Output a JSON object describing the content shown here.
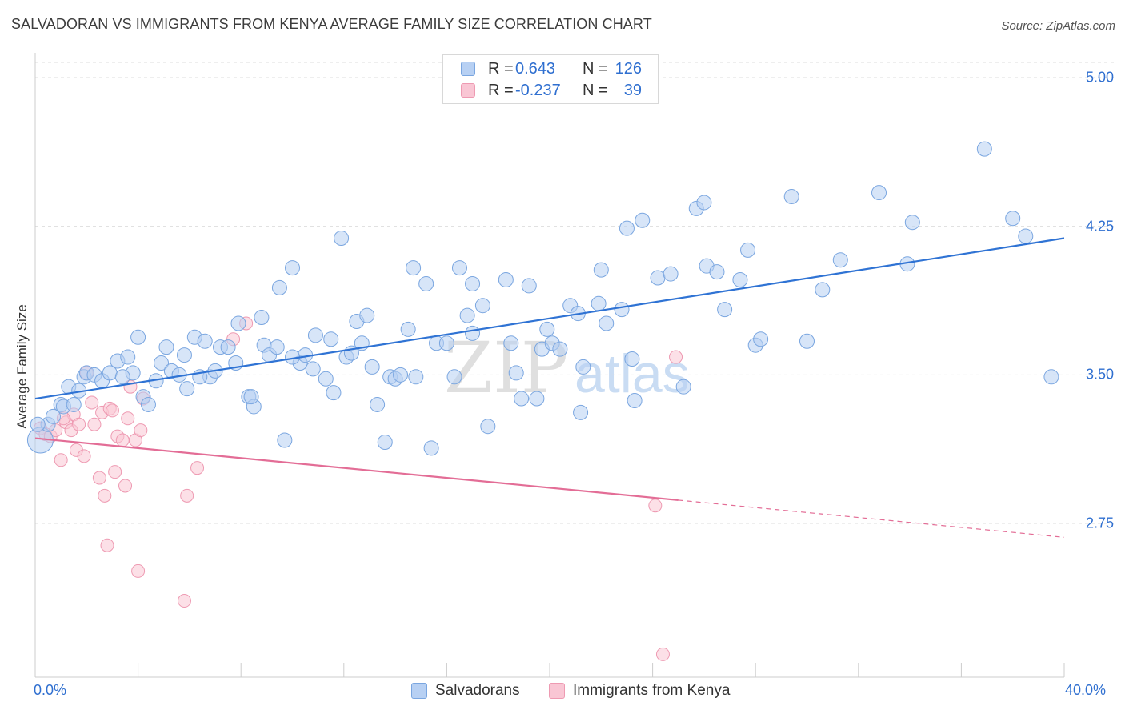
{
  "title": "SALVADORAN VS IMMIGRANTS FROM KENYA AVERAGE FAMILY SIZE CORRELATION CHART",
  "source": "Source: ZipAtlas.com",
  "watermark": "ZIPatlas",
  "legend_top": {
    "rows": [
      {
        "r_label": "R =",
        "r_value": "0.643",
        "n_label": "N =",
        "n_value": "126",
        "color": "#7aa6e0"
      },
      {
        "r_label": "R =",
        "r_value": "-0.237",
        "n_label": "N =",
        "n_value": "39",
        "color": "#ee9ab2"
      }
    ]
  },
  "colors": {
    "blue_fill": "#b7d0f3",
    "blue_stroke": "#7aa6e0",
    "blue_line": "#2f73d4",
    "pink_fill": "#f9c6d4",
    "pink_stroke": "#ee9ab2",
    "pink_line": "#e36d96",
    "tick_text": "#2f6fd0",
    "grid": "#dddddd"
  },
  "chart_data": {
    "type": "scatter",
    "title": "SALVADORAN VS IMMIGRANTS FROM KENYA AVERAGE FAMILY SIZE CORRELATION CHART",
    "xlabel": "",
    "ylabel": "Average Family Size",
    "xlim": [
      0,
      40
    ],
    "ylim": [
      2.15,
      5.1
    ],
    "x_tick_labels": [
      "0.0%",
      "40.0%"
    ],
    "y_ticks": [
      2.75,
      3.5,
      4.25,
      5.0
    ],
    "y_tick_labels": [
      "2.75",
      "3.50",
      "4.25",
      "5.00"
    ],
    "grid": true,
    "legend_position": "bottom",
    "series": [
      {
        "name": "Salvadorans",
        "color": "#7aa6e0",
        "trend": {
          "x": [
            0,
            40
          ],
          "y": [
            3.38,
            4.19
          ],
          "dashed_from": null
        },
        "points": [
          [
            0.2,
            3.17
          ],
          [
            0.5,
            3.25
          ],
          [
            0.7,
            3.29
          ],
          [
            1.0,
            3.35
          ],
          [
            1.1,
            3.34
          ],
          [
            1.3,
            3.44
          ],
          [
            1.5,
            3.35
          ],
          [
            1.9,
            3.49
          ],
          [
            2.0,
            3.51
          ],
          [
            2.3,
            3.5
          ],
          [
            2.6,
            3.47
          ],
          [
            2.9,
            3.51
          ],
          [
            3.2,
            3.57
          ],
          [
            3.6,
            3.59
          ],
          [
            3.8,
            3.51
          ],
          [
            4.0,
            3.69
          ],
          [
            4.2,
            3.39
          ],
          [
            4.4,
            3.35
          ],
          [
            4.7,
            3.47
          ],
          [
            4.9,
            3.56
          ],
          [
            5.1,
            3.64
          ],
          [
            5.3,
            3.52
          ],
          [
            5.6,
            3.5
          ],
          [
            5.8,
            3.6
          ],
          [
            5.9,
            3.43
          ],
          [
            6.2,
            3.69
          ],
          [
            6.6,
            3.67
          ],
          [
            6.8,
            3.49
          ],
          [
            7.0,
            3.52
          ],
          [
            7.2,
            3.64
          ],
          [
            7.5,
            3.64
          ],
          [
            7.8,
            3.56
          ],
          [
            7.9,
            3.76
          ],
          [
            8.3,
            3.39
          ],
          [
            8.5,
            3.34
          ],
          [
            8.4,
            3.39
          ],
          [
            8.8,
            3.79
          ],
          [
            8.9,
            3.65
          ],
          [
            9.1,
            3.6
          ],
          [
            9.5,
            3.94
          ],
          [
            9.7,
            3.17
          ],
          [
            10.0,
            4.04
          ],
          [
            10.3,
            3.56
          ],
          [
            10.5,
            3.6
          ],
          [
            10.8,
            3.53
          ],
          [
            10.9,
            3.7
          ],
          [
            11.3,
            3.48
          ],
          [
            11.5,
            3.68
          ],
          [
            11.6,
            3.41
          ],
          [
            11.9,
            4.19
          ],
          [
            12.1,
            3.59
          ],
          [
            12.3,
            3.61
          ],
          [
            12.5,
            3.77
          ],
          [
            12.7,
            3.66
          ],
          [
            12.9,
            3.8
          ],
          [
            13.1,
            3.54
          ],
          [
            13.3,
            3.35
          ],
          [
            13.6,
            3.16
          ],
          [
            13.8,
            3.49
          ],
          [
            14.0,
            3.48
          ],
          [
            14.2,
            3.5
          ],
          [
            14.5,
            3.73
          ],
          [
            14.7,
            4.04
          ],
          [
            14.8,
            3.49
          ],
          [
            15.2,
            3.96
          ],
          [
            15.4,
            3.13
          ],
          [
            15.6,
            3.66
          ],
          [
            16.0,
            3.66
          ],
          [
            16.3,
            3.49
          ],
          [
            16.5,
            4.04
          ],
          [
            16.8,
            3.8
          ],
          [
            17.0,
            3.71
          ],
          [
            17.0,
            3.96
          ],
          [
            17.4,
            3.85
          ],
          [
            17.6,
            3.24
          ],
          [
            18.3,
            3.98
          ],
          [
            18.5,
            3.66
          ],
          [
            18.7,
            3.51
          ],
          [
            18.9,
            3.38
          ],
          [
            19.2,
            3.95
          ],
          [
            19.5,
            3.38
          ],
          [
            19.7,
            3.63
          ],
          [
            19.9,
            3.73
          ],
          [
            20.1,
            3.66
          ],
          [
            20.4,
            3.63
          ],
          [
            20.8,
            3.85
          ],
          [
            21.1,
            3.81
          ],
          [
            21.2,
            3.31
          ],
          [
            21.3,
            3.54
          ],
          [
            21.9,
            3.86
          ],
          [
            22.0,
            4.03
          ],
          [
            22.2,
            3.76
          ],
          [
            22.8,
            3.83
          ],
          [
            23.2,
            3.58
          ],
          [
            23.3,
            3.37
          ],
          [
            23.0,
            4.24
          ],
          [
            23.6,
            4.28
          ],
          [
            24.2,
            3.99
          ],
          [
            24.7,
            4.01
          ],
          [
            25.2,
            3.44
          ],
          [
            25.7,
            4.34
          ],
          [
            26.0,
            4.37
          ],
          [
            26.1,
            4.05
          ],
          [
            26.5,
            4.02
          ],
          [
            26.8,
            3.83
          ],
          [
            27.4,
            3.98
          ],
          [
            27.7,
            4.13
          ],
          [
            28.0,
            3.65
          ],
          [
            28.2,
            3.68
          ],
          [
            29.4,
            4.4
          ],
          [
            30.0,
            3.67
          ],
          [
            30.6,
            3.93
          ],
          [
            31.3,
            4.08
          ],
          [
            32.8,
            4.42
          ],
          [
            33.9,
            4.06
          ],
          [
            34.1,
            4.27
          ],
          [
            36.9,
            4.64
          ],
          [
            38.0,
            4.29
          ],
          [
            38.5,
            4.2
          ],
          [
            39.5,
            3.49
          ],
          [
            0.1,
            3.25
          ],
          [
            1.7,
            3.42
          ],
          [
            3.4,
            3.49
          ],
          [
            6.4,
            3.49
          ],
          [
            9.4,
            3.64
          ],
          [
            10.0,
            3.59
          ]
        ]
      },
      {
        "name": "Immigrants from Kenya",
        "color": "#ee9ab2",
        "trend": {
          "x": [
            0,
            40
          ],
          "y": [
            3.18,
            2.68
          ],
          "dashed_from": 25.0
        },
        "points": [
          [
            0.2,
            3.23
          ],
          [
            0.4,
            3.2
          ],
          [
            0.6,
            3.19
          ],
          [
            0.8,
            3.22
          ],
          [
            1.0,
            3.07
          ],
          [
            1.2,
            3.26
          ],
          [
            1.4,
            3.22
          ],
          [
            1.5,
            3.3
          ],
          [
            1.6,
            3.12
          ],
          [
            1.7,
            3.25
          ],
          [
            1.9,
            3.09
          ],
          [
            2.0,
            3.51
          ],
          [
            2.2,
            3.36
          ],
          [
            2.3,
            3.25
          ],
          [
            2.5,
            2.98
          ],
          [
            2.6,
            3.31
          ],
          [
            2.7,
            2.89
          ],
          [
            2.8,
            2.64
          ],
          [
            2.9,
            3.33
          ],
          [
            3.0,
            3.32
          ],
          [
            3.1,
            3.01
          ],
          [
            3.2,
            3.19
          ],
          [
            3.4,
            3.17
          ],
          [
            3.5,
            2.94
          ],
          [
            3.6,
            3.28
          ],
          [
            3.7,
            3.44
          ],
          [
            3.9,
            3.17
          ],
          [
            4.0,
            2.51
          ],
          [
            4.1,
            3.22
          ],
          [
            4.2,
            3.38
          ],
          [
            5.8,
            2.36
          ],
          [
            5.9,
            2.89
          ],
          [
            6.3,
            3.03
          ],
          [
            7.7,
            3.68
          ],
          [
            8.2,
            3.76
          ],
          [
            24.1,
            2.84
          ],
          [
            24.4,
            2.09
          ],
          [
            24.9,
            3.59
          ],
          [
            1.1,
            3.28
          ]
        ]
      }
    ]
  },
  "bottom_legend": [
    {
      "label": "Salvadorans",
      "color": "#7aa6e0"
    },
    {
      "label": "Immigrants from Kenya",
      "color": "#ee9ab2"
    }
  ]
}
